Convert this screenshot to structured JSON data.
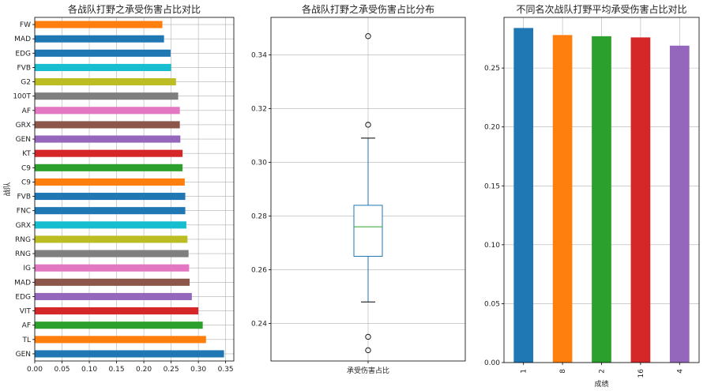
{
  "chart_data": [
    {
      "type": "bar",
      "orientation": "horizontal",
      "title": "各战队打野之承受伤害占比对比",
      "xlabel": "",
      "ylabel": "战队",
      "xlim": [
        0,
        0.365
      ],
      "xticks": [
        "0.00",
        "0.05",
        "0.10",
        "0.15",
        "0.20",
        "0.25",
        "0.30",
        "0.35"
      ],
      "grid": true,
      "categories": [
        "GEN",
        "TL",
        "AF",
        "VIT",
        "EDG",
        "MAD",
        "IG",
        "RNG",
        "RNG",
        "GRX",
        "FNC",
        "FVB",
        "C9",
        "C9",
        "KT",
        "GEN",
        "GRX",
        "AF",
        "100T",
        "G2",
        "FVB",
        "EDG",
        "MAD",
        "FW"
      ],
      "values": [
        0.347,
        0.314,
        0.308,
        0.3,
        0.288,
        0.284,
        0.283,
        0.282,
        0.28,
        0.278,
        0.276,
        0.276,
        0.275,
        0.271,
        0.271,
        0.267,
        0.266,
        0.266,
        0.263,
        0.259,
        0.25,
        0.249,
        0.237,
        0.234
      ],
      "colors": [
        "#1f77b4",
        "#ff7f0e",
        "#2ca02c",
        "#d62728",
        "#9467bd",
        "#8c564b",
        "#e377c2",
        "#7f7f7f",
        "#bcbd22",
        "#17becf",
        "#1f77b4",
        "#1f77b4",
        "#ff7f0e",
        "#2ca02c",
        "#d62728",
        "#9467bd",
        "#8c564b",
        "#e377c2",
        "#7f7f7f",
        "#bcbd22",
        "#17becf",
        "#1f77b4",
        "#1f77b4",
        "#ff7f0e"
      ]
    },
    {
      "type": "box",
      "title": "各战队打野之承受伤害占比分布",
      "xlabel": "",
      "ylabel": "",
      "category": "承受伤害占比",
      "ylim": [
        0.226,
        0.354
      ],
      "yticks": [
        "0.24",
        "0.26",
        "0.28",
        "0.30",
        "0.32",
        "0.34"
      ],
      "grid": true,
      "whisker_low": 0.248,
      "q1": 0.265,
      "median": 0.276,
      "q3": 0.284,
      "whisker_high": 0.309,
      "outliers": [
        0.347,
        0.314,
        0.235,
        0.23
      ],
      "box_color": "#1f77b4",
      "median_color": "#2ca02c"
    },
    {
      "type": "bar",
      "title": "不同名次战队打野平均承受伤害占比对比",
      "xlabel": "成绩",
      "ylabel": "",
      "ylim": [
        0,
        0.293
      ],
      "yticks": [
        "0.00",
        "0.05",
        "0.10",
        "0.15",
        "0.20",
        "0.25"
      ],
      "grid": true,
      "categories": [
        "1",
        "8",
        "2",
        "16",
        "4"
      ],
      "values": [
        0.284,
        0.278,
        0.277,
        0.276,
        0.269
      ],
      "colors": [
        "#1f77b4",
        "#ff7f0e",
        "#2ca02c",
        "#d62728",
        "#9467bd"
      ]
    }
  ]
}
